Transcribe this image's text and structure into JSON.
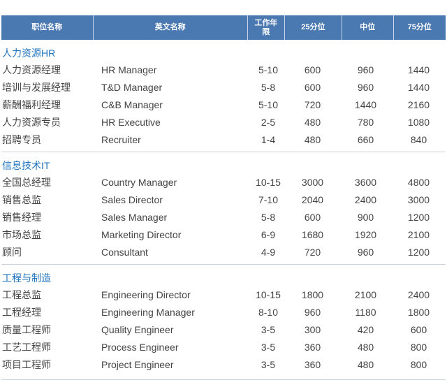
{
  "header": [
    "职位名称",
    "英文名称",
    "工作年限",
    "25分位",
    "中位",
    "75分位"
  ],
  "sections": [
    {
      "title": "人力资源HR",
      "rows": [
        [
          "人力资源经理",
          "HR Manager",
          "5-10",
          "600",
          "960",
          "1440"
        ],
        [
          "培训与发展经理",
          "T&D Manager",
          "5-8",
          "600",
          "960",
          "1440"
        ],
        [
          "薪酬福利经理",
          "C&B Manager",
          "5-10",
          "720",
          "1440",
          "2160"
        ],
        [
          "人力资源专员",
          "HR Executive",
          "2-5",
          "480",
          "780",
          "1080"
        ],
        [
          "招聘专员",
          "Recruiter",
          "1-4",
          "480",
          "660",
          "840"
        ]
      ]
    },
    {
      "title": "信息技术IT",
      "rows": [
        [
          "全国总经理",
          "Country Manager",
          "10-15",
          "3000",
          "3600",
          "4800"
        ],
        [
          "销售总监",
          "Sales Director",
          "7-10",
          "2040",
          "2400",
          "3000"
        ],
        [
          "销售经理",
          "Sales Manager",
          "5-8",
          "600",
          "900",
          "1200"
        ],
        [
          "市场总监",
          "Marketing Director",
          "6-9",
          "1680",
          "1920",
          "2100"
        ],
        [
          "顾问",
          "Consultant",
          "4-9",
          "720",
          "960",
          "1200"
        ]
      ]
    },
    {
      "title": "工程与制造",
      "rows": [
        [
          "工程总监",
          "Engineering Director",
          "10-15",
          "1800",
          "2100",
          "2400"
        ],
        [
          "工程经理",
          "Engineering Manager",
          "8-10",
          "960",
          "1180",
          "1800"
        ],
        [
          "质量工程师",
          "Quality Engineer",
          "3-5",
          "300",
          "420",
          "600"
        ],
        [
          "工艺工程师",
          "Process Engineer",
          "3-5",
          "360",
          "480",
          "800"
        ],
        [
          "项目工程师",
          "Project Engineer",
          "3-5",
          "360",
          "480",
          "800"
        ]
      ]
    }
  ]
}
